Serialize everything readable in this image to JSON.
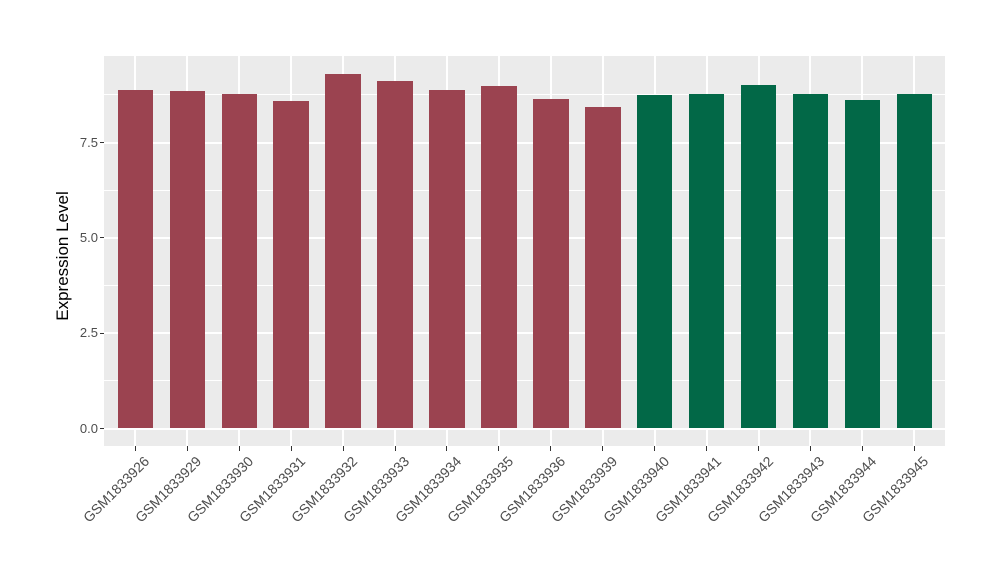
{
  "chart_data": {
    "type": "bar",
    "title": "",
    "xlabel": "",
    "ylabel": "Expression Level",
    "legend": "none",
    "categories": [
      "GSM1833926",
      "GSM1833929",
      "GSM1833930",
      "GSM1833931",
      "GSM1833932",
      "GSM1833933",
      "GSM1833934",
      "GSM1833935",
      "GSM1833936",
      "GSM1833939",
      "GSM1833940",
      "GSM1833941",
      "GSM1833942",
      "GSM1833943",
      "GSM1833944",
      "GSM1833945"
    ],
    "values": [
      8.88,
      8.85,
      8.77,
      8.58,
      9.3,
      9.12,
      8.87,
      8.99,
      8.64,
      8.44,
      8.75,
      8.78,
      9.01,
      8.78,
      8.61,
      8.78
    ],
    "bar_groups": [
      "maroon",
      "maroon",
      "maroon",
      "maroon",
      "maroon",
      "maroon",
      "maroon",
      "maroon",
      "maroon",
      "maroon",
      "green",
      "green",
      "green",
      "green",
      "green",
      "green"
    ],
    "group_colors": {
      "maroon": "#9B4350",
      "green": "#026847"
    },
    "y_ticks": [
      {
        "value": 0,
        "label": "0.0"
      },
      {
        "value": 2.5,
        "label": "2.5"
      },
      {
        "value": 5,
        "label": "5.0"
      },
      {
        "value": 7.5,
        "label": "7.5"
      }
    ],
    "minor_gridlines": [
      1.25,
      3.75,
      6.25,
      8.75
    ],
    "ylim": [
      -0.47,
      9.77
    ],
    "grid": true,
    "panel_background": "#EBEBEB",
    "gridline_color": "#FFFFFF",
    "tick_label_color": "#4D4D4D",
    "axis_title_color": "#000000"
  }
}
